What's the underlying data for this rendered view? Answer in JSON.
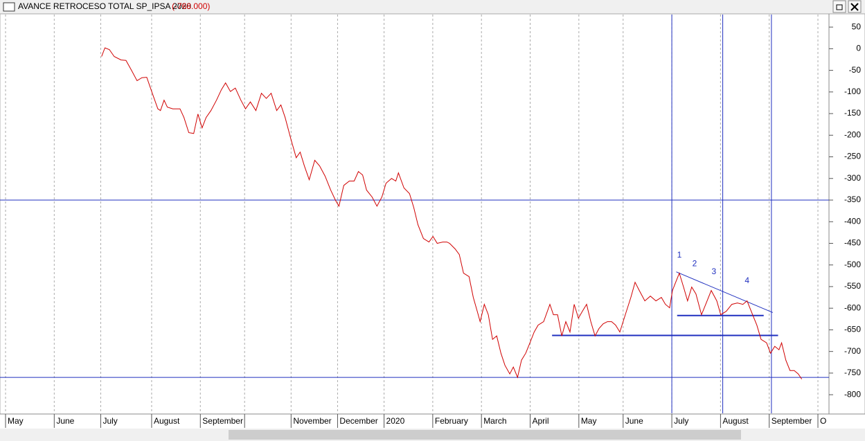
{
  "chart_data": {
    "type": "line",
    "title": "AVANCE RETROCESO TOTAL SP_IPSA 2020",
    "last_value_label": "(-768.000)",
    "xlim": [
      0,
      372
    ],
    "ylim": [
      -843,
      79
    ],
    "xticks": [
      {
        "value": 0,
        "label": "May"
      },
      {
        "value": 22,
        "label": "June"
      },
      {
        "value": 43,
        "label": "July"
      },
      {
        "value": 66,
        "label": "August"
      },
      {
        "value": 88,
        "label": "September"
      },
      {
        "value": 108,
        "label": null
      },
      {
        "value": 129,
        "label": "November"
      },
      {
        "value": 150,
        "label": "December"
      },
      {
        "value": 171,
        "label": "2020"
      },
      {
        "value": 193,
        "label": "February"
      },
      {
        "value": 215,
        "label": "March"
      },
      {
        "value": 237,
        "label": "April"
      },
      {
        "value": 259,
        "label": "May"
      },
      {
        "value": 279,
        "label": "June"
      },
      {
        "value": 301,
        "label": "July"
      },
      {
        "value": 323,
        "label": "August"
      },
      {
        "value": 345,
        "label": "September"
      },
      {
        "value": 367,
        "label": "O"
      }
    ],
    "yticks": [
      50,
      0,
      -50,
      -100,
      -150,
      -200,
      -250,
      -300,
      -350,
      -400,
      -450,
      -500,
      -550,
      -600,
      -650,
      -700,
      -750,
      -800
    ],
    "grid": true,
    "series": [
      {
        "name": "SP_IPSA",
        "color": "#d00000",
        "x": [
          43.4,
          44.9,
          46.9,
          49.1,
          52.2,
          54.4,
          56.9,
          59.4,
          61.6,
          63.8,
          66.3,
          68.8,
          70,
          71.6,
          73.1,
          75.6,
          78.8,
          80.6,
          82.8,
          85,
          86.9,
          88.8,
          90.6,
          92.8,
          95.3,
          97.5,
          99.4,
          101.6,
          103.8,
          106.3,
          108.4,
          110.6,
          113.1,
          115.6,
          117.8,
          120,
          122.5,
          124.4,
          126.3,
          128.8,
          131.3,
          133.1,
          135,
          137.2,
          139.7,
          141.9,
          144.4,
          146.9,
          149.1,
          150.6,
          152.8,
          155.3,
          157.5,
          159.4,
          161.3,
          163.1,
          165.6,
          167.8,
          170,
          171.9,
          174.4,
          176.3,
          177.5,
          180,
          182.5,
          184.4,
          186.3,
          188.8,
          191.3,
          193.1,
          195,
          197.5,
          199.4,
          200.6,
          203.1,
          205,
          206.9,
          209.4,
          211.3,
          213.1,
          214.4,
          216.3,
          218.1,
          220,
          221.9,
          223.8,
          225.6,
          227.8,
          229.4,
          231.3,
          233.1,
          235,
          236.9,
          238.8,
          240.6,
          243.1,
          245.9,
          247.5,
          249.4,
          251.3,
          253.1,
          255,
          256.9,
          258.8,
          260.6,
          262.5,
          264.4,
          266.3,
          268.1,
          270,
          271.9,
          273.8,
          275.6,
          277.5,
          280,
          282.5,
          284.4,
          286.3,
          288.8,
          291.3,
          293.8,
          296.3,
          298.1,
          300,
          301.3,
          302.5,
          304.4,
          306.3,
          308.1,
          310,
          311.9,
          314.4,
          316.3,
          318.8,
          321.3,
          323.1,
          325.6,
          328.1,
          330.6,
          333.1,
          335,
          337.5,
          339.4,
          341.3,
          343.8,
          345.6,
          347.5,
          349.4,
          350.6,
          352.5,
          354.4,
          356.3,
          358.1,
          359.7
        ],
        "values": [
          -18,
          2,
          -2,
          -18,
          -26,
          -27,
          -50,
          -74,
          -67,
          -66,
          -103,
          -139,
          -143,
          -119,
          -135,
          -139,
          -139,
          -159,
          -194,
          -196,
          -151,
          -183,
          -159,
          -143,
          -119,
          -95,
          -79,
          -99,
          -91,
          -119,
          -139,
          -123,
          -143,
          -103,
          -115,
          -103,
          -143,
          -130,
          -159,
          -207,
          -252,
          -239,
          -271,
          -303,
          -258,
          -271,
          -295,
          -327,
          -351,
          -364,
          -316,
          -306,
          -306,
          -284,
          -292,
          -327,
          -343,
          -364,
          -343,
          -311,
          -300,
          -306,
          -287,
          -322,
          -335,
          -367,
          -407,
          -439,
          -447,
          -434,
          -450,
          -447,
          -447,
          -450,
          -463,
          -476,
          -519,
          -527,
          -575,
          -607,
          -631,
          -591,
          -615,
          -672,
          -664,
          -704,
          -732,
          -752,
          -736,
          -760,
          -720,
          -704,
          -680,
          -655,
          -639,
          -631,
          -591,
          -615,
          -615,
          -664,
          -631,
          -655,
          -591,
          -623,
          -607,
          -591,
          -631,
          -664,
          -647,
          -636,
          -631,
          -631,
          -639,
          -655,
          -615,
          -575,
          -540,
          -559,
          -583,
          -572,
          -583,
          -575,
          -591,
          -599,
          -559,
          -543,
          -519,
          -551,
          -583,
          -551,
          -567,
          -615,
          -591,
          -559,
          -583,
          -615,
          -607,
          -591,
          -588,
          -591,
          -583,
          -615,
          -639,
          -672,
          -680,
          -704,
          -688,
          -696,
          -680,
          -720,
          -744,
          -744,
          -752,
          -764
        ]
      }
    ],
    "hlines": [
      -350,
      -760
    ],
    "vlines": [
      301,
      324,
      346
    ],
    "trendlines": [
      {
        "x": [
          303,
          346.6
        ],
        "y": [
          -516,
          -610
        ]
      },
      {
        "x": [
          303.4,
          342.5
        ],
        "y": [
          -617,
          -617
        ]
      },
      {
        "x": [
          246.9,
          349
        ],
        "y": [
          -663,
          -663
        ]
      }
    ],
    "annotations": [
      {
        "text": "1",
        "x": 304.4,
        "y": -478
      },
      {
        "text": "2",
        "x": 311.3,
        "y": -498
      },
      {
        "text": "3",
        "x": 320,
        "y": -516
      },
      {
        "text": "4",
        "x": 335,
        "y": -537
      }
    ]
  }
}
